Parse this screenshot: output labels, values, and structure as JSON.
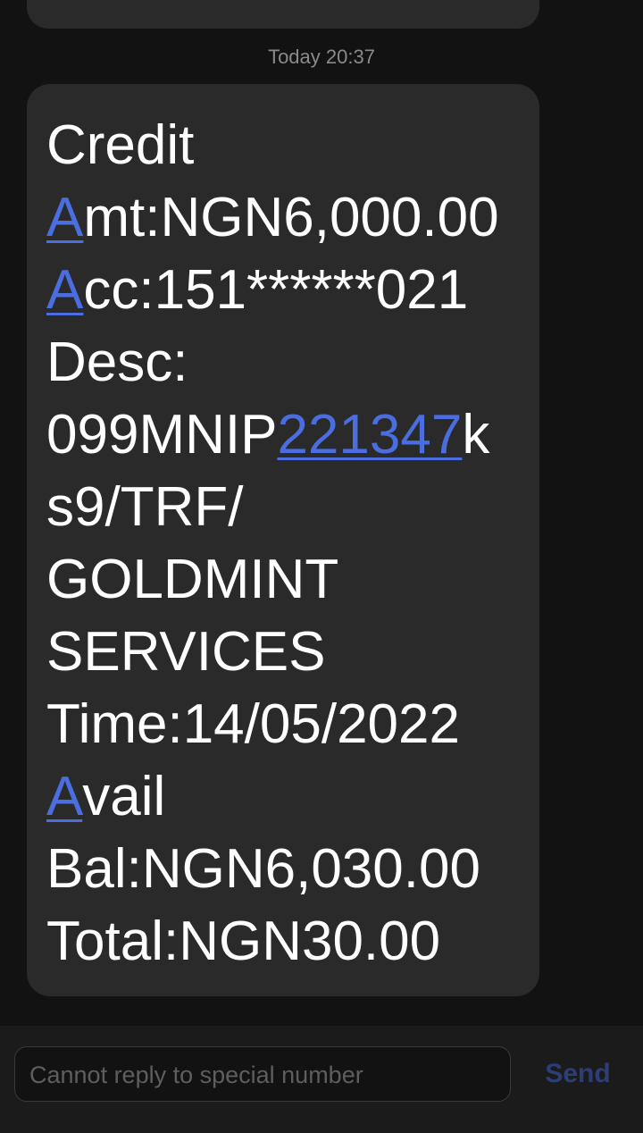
{
  "conversation": {
    "timestamp": "Today 20:37"
  },
  "message": {
    "line1": "Credit",
    "line2_link": "A",
    "line2_rest": "mt:NGN6,000.00",
    "line3_link": "A",
    "line3_rest": "cc:151******021",
    "line4": "Desc:",
    "line5_pre": "099MNIP",
    "line5_link": "221347",
    "line5_post": "k",
    "line6": "s9/TRF/",
    "line7": "GOLDMINT",
    "line8": "SERVICES",
    "line9": "Time:14/05/2022",
    "line10_link": "A",
    "line10_rest": "vail",
    "line11": "Bal:NGN6,030.00",
    "line12": "Total:NGN30.00"
  },
  "composer": {
    "placeholder": "Cannot reply to special number",
    "send_label": "Send"
  },
  "colors": {
    "background": "#121212",
    "bubble": "#2a2a2a",
    "link": "#4a6ee0",
    "send_disabled": "#2e3d78"
  }
}
